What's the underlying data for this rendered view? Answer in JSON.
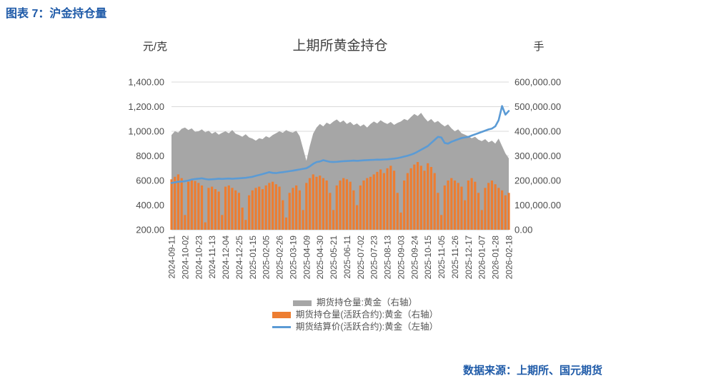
{
  "page": {
    "figure_title": "图表 7：沪金持仓量",
    "source": "数据来源：上期所、国元期货"
  },
  "colors": {
    "heading_blue": "#1e5aa8",
    "grid": "#d9d9d9",
    "axis_line": "#bfbfbf",
    "gray_area": "#a6a6a6",
    "orange_bar": "#ed7d31",
    "blue_line": "#5b9bd5"
  },
  "chart_data": {
    "type": "combo",
    "title": "上期所黄金持仓",
    "legend_position": "bottom",
    "grid": true,
    "left_axis": {
      "label": "元/克",
      "min": 200,
      "max": 1400,
      "tick_labels": [
        "1,400.00",
        "1,200.00",
        "1,000.00",
        "800.00",
        "600.00",
        "400.00",
        "200.00"
      ]
    },
    "right_axis": {
      "label": "手",
      "min": 0,
      "max": 600000,
      "tick_labels": [
        "600,000.00",
        "500,000.00",
        "400,000.00",
        "300,000.00",
        "200,000.00",
        "100,000.00",
        "0.00"
      ]
    },
    "x_tick_labels": [
      "2024-09-11",
      "2024-10-02",
      "2024-10-23",
      "2024-11-13",
      "2024-12-04",
      "2024-12-25",
      "2025-01-15",
      "2025-02-05",
      "2025-02-26",
      "2025-03-19",
      "2025-04-09",
      "2025-04-30",
      "2025-05-21",
      "2025-06-11",
      "2025-07-02",
      "2025-07-23",
      "2025-08-13",
      "2025-09-03",
      "2025-09-24",
      "2025-10-15",
      "2025-11-05",
      "2025-11-26",
      "2025-12-17",
      "2026-01-07",
      "2026-01-28",
      "2026-02-18"
    ],
    "x_tick_every_n_points": 4,
    "series": [
      {
        "name": "期货持仓量:黄金（右轴）",
        "type": "area",
        "axis": "right",
        "color": "#a6a6a6",
        "values": [
          385000,
          400000,
          395000,
          410000,
          415000,
          405000,
          412000,
          398000,
          400000,
          408000,
          396000,
          402000,
          390000,
          398000,
          386000,
          394000,
          400000,
          392000,
          405000,
          390000,
          385000,
          378000,
          388000,
          375000,
          370000,
          362000,
          372000,
          368000,
          380000,
          374000,
          385000,
          392000,
          400000,
          394000,
          405000,
          398000,
          395000,
          402000,
          380000,
          330000,
          280000,
          340000,
          390000,
          415000,
          430000,
          420000,
          435000,
          428000,
          440000,
          448000,
          436000,
          444000,
          430000,
          438000,
          425000,
          432000,
          420000,
          428000,
          415000,
          430000,
          440000,
          432000,
          445000,
          436000,
          430000,
          438000,
          426000,
          434000,
          440000,
          450000,
          444000,
          458000,
          470000,
          462000,
          475000,
          455000,
          440000,
          450000,
          435000,
          442000,
          430000,
          420000,
          428000,
          412000,
          400000,
          408000,
          392000,
          386000,
          380000,
          372000,
          378000,
          366000,
          360000,
          368000,
          355000,
          362000,
          350000,
          370000,
          340000,
          310000,
          290000
        ]
      },
      {
        "name": "期货持仓量(活跃合约):黄金（右轴）",
        "type": "bar",
        "axis": "right",
        "color": "#ed7d31",
        "values": [
          205000,
          215000,
          225000,
          210000,
          60000,
          195000,
          205000,
          198000,
          190000,
          180000,
          30000,
          170000,
          175000,
          165000,
          155000,
          60000,
          175000,
          180000,
          170000,
          160000,
          150000,
          90000,
          40000,
          140000,
          160000,
          170000,
          175000,
          165000,
          180000,
          190000,
          195000,
          185000,
          175000,
          120000,
          50000,
          150000,
          170000,
          180000,
          160000,
          80000,
          190000,
          210000,
          225000,
          215000,
          220000,
          210000,
          200000,
          150000,
          80000,
          180000,
          200000,
          210000,
          205000,
          195000,
          160000,
          100000,
          180000,
          200000,
          210000,
          215000,
          225000,
          235000,
          245000,
          230000,
          250000,
          260000,
          240000,
          150000,
          70000,
          200000,
          230000,
          250000,
          265000,
          275000,
          260000,
          240000,
          270000,
          255000,
          230000,
          150000,
          60000,
          180000,
          200000,
          210000,
          200000,
          190000,
          175000,
          120000,
          200000,
          210000,
          195000,
          150000,
          80000,
          170000,
          190000,
          200000,
          185000,
          170000,
          160000,
          140000,
          150000
        ]
      },
      {
        "name": "期货结算价(活跃合约):黄金（左轴）",
        "type": "line",
        "axis": "left",
        "color": "#5b9bd5",
        "values": [
          580,
          585,
          590,
          592,
          595,
          600,
          608,
          612,
          615,
          618,
          612,
          608,
          610,
          612,
          615,
          613,
          615,
          616,
          614,
          616,
          618,
          620,
          622,
          626,
          630,
          638,
          645,
          652,
          660,
          668,
          662,
          660,
          665,
          668,
          672,
          676,
          680,
          685,
          690,
          695,
          700,
          715,
          735,
          750,
          755,
          765,
          758,
          752,
          750,
          752,
          755,
          757,
          758,
          760,
          762,
          760,
          762,
          764,
          766,
          767,
          768,
          770,
          769,
          771,
          772,
          775,
          778,
          782,
          788,
          795,
          802,
          810,
          820,
          835,
          850,
          865,
          880,
          905,
          930,
          955,
          950,
          905,
          900,
          915,
          925,
          935,
          945,
          950,
          955,
          965,
          975,
          985,
          995,
          1005,
          1015,
          1022,
          1040,
          1090,
          1205,
          1135,
          1165
        ]
      }
    ]
  }
}
